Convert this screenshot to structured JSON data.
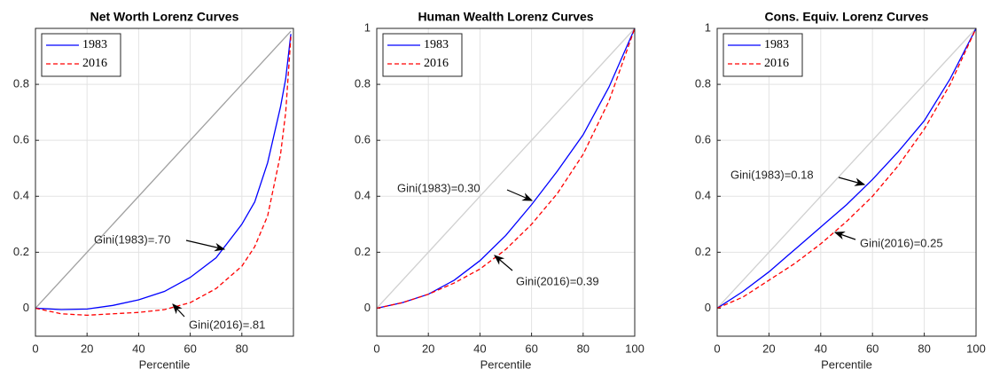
{
  "chart_data": [
    {
      "type": "line",
      "title": "Net Worth Lorenz Curves",
      "x_label": "Percentile",
      "x": [
        0,
        10,
        20,
        30,
        40,
        50,
        60,
        70,
        80,
        85,
        90,
        95,
        97,
        99
      ],
      "series": [
        {
          "name": "1983",
          "color": "#0000ff",
          "dash": "solid",
          "values": [
            0,
            -0.005,
            -0.003,
            0.01,
            0.03,
            0.06,
            0.11,
            0.18,
            0.3,
            0.38,
            0.52,
            0.72,
            0.82,
            0.98
          ]
        },
        {
          "name": "2016",
          "color": "#ff0000",
          "dash": "dashed",
          "values": [
            0,
            -0.02,
            -0.025,
            -0.02,
            -0.015,
            -0.005,
            0.02,
            0.07,
            0.15,
            0.22,
            0.33,
            0.55,
            0.7,
            0.97
          ]
        }
      ],
      "reference_line": {
        "x": [
          0,
          99
        ],
        "values": [
          0,
          0.99
        ],
        "color": "#a0a0a0"
      },
      "annotations": [
        "Gini(1983)=.70",
        "Gini(2016)=.81"
      ],
      "xlim": [
        0,
        100
      ],
      "xticks": [
        0,
        20,
        40,
        60,
        80
      ],
      "ylim": [
        -0.1,
        1
      ],
      "yticks": [
        0,
        0.2,
        0.4,
        0.6,
        0.8
      ],
      "grid": true,
      "legend": "upper left"
    },
    {
      "type": "line",
      "title": "Human Wealth Lorenz Curves",
      "x_label": "Percentile",
      "x": [
        0,
        10,
        20,
        30,
        40,
        50,
        60,
        70,
        80,
        90,
        100
      ],
      "series": [
        {
          "name": "1983",
          "color": "#0000ff",
          "dash": "solid",
          "values": [
            0,
            0.02,
            0.05,
            0.1,
            0.17,
            0.26,
            0.37,
            0.49,
            0.62,
            0.79,
            1
          ]
        },
        {
          "name": "2016",
          "color": "#ff0000",
          "dash": "dashed",
          "values": [
            0,
            0.02,
            0.05,
            0.09,
            0.14,
            0.21,
            0.3,
            0.41,
            0.55,
            0.74,
            1
          ]
        }
      ],
      "reference_line": {
        "x": [
          0,
          100
        ],
        "values": [
          0,
          1
        ],
        "color": "#d0d0d0"
      },
      "annotations": [
        "Gini(1983)=0.30",
        "Gini(2016)=0.39"
      ],
      "xlim": [
        0,
        100
      ],
      "xticks": [
        0,
        20,
        40,
        60,
        80,
        100
      ],
      "ylim": [
        -0.1,
        1
      ],
      "yticks": [
        0,
        0.2,
        0.4,
        0.6,
        0.8,
        1
      ],
      "grid": true,
      "legend": "upper left"
    },
    {
      "type": "line",
      "title": "Cons. Equiv. Lorenz Curves",
      "x_label": "Percentile",
      "x": [
        0,
        10,
        20,
        30,
        40,
        50,
        60,
        70,
        80,
        90,
        100
      ],
      "series": [
        {
          "name": "1983",
          "color": "#0000ff",
          "dash": "solid",
          "values": [
            0,
            0.06,
            0.13,
            0.21,
            0.29,
            0.37,
            0.46,
            0.56,
            0.67,
            0.82,
            1
          ]
        },
        {
          "name": "2016",
          "color": "#ff0000",
          "dash": "dashed",
          "values": [
            0,
            0.04,
            0.1,
            0.16,
            0.23,
            0.31,
            0.4,
            0.51,
            0.64,
            0.8,
            1
          ]
        }
      ],
      "reference_line": {
        "x": [
          0,
          100
        ],
        "values": [
          0,
          1
        ],
        "color": "#d0d0d0"
      },
      "annotations": [
        "Gini(1983)=0.18",
        "Gini(2016)=0.25"
      ],
      "xlim": [
        0,
        100
      ],
      "xticks": [
        0,
        20,
        40,
        60,
        80,
        100
      ],
      "ylim": [
        -0.1,
        1
      ],
      "yticks": [
        0,
        0.2,
        0.4,
        0.6,
        0.8,
        1
      ],
      "grid": true,
      "legend": "upper left"
    }
  ]
}
